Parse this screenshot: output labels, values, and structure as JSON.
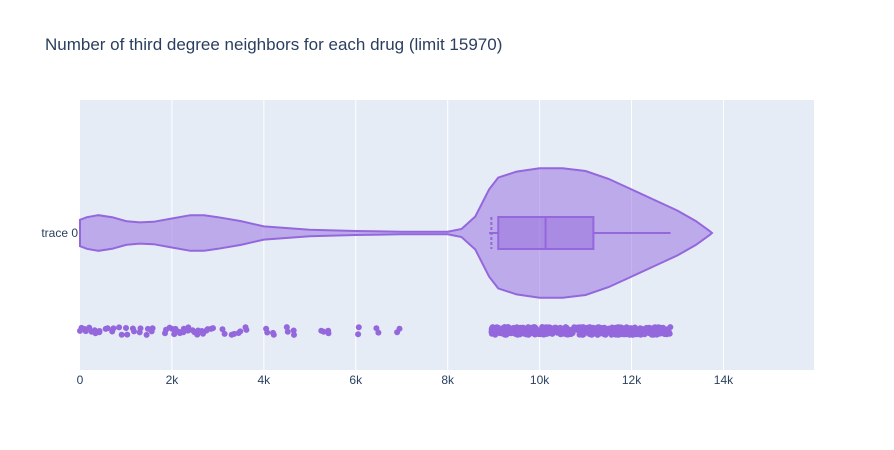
{
  "chart_data": {
    "type": "violin",
    "title": "Number of third degree neighbors for each drug (limit 15970)",
    "xlabel": "",
    "ylabel": "",
    "xlim": [
      0,
      15970
    ],
    "x_ticks": [
      0,
      2000,
      4000,
      6000,
      8000,
      10000,
      12000,
      14000
    ],
    "x_tick_labels": [
      "0",
      "2k",
      "4k",
      "6k",
      "8k",
      "10k",
      "12k",
      "14k"
    ],
    "grid": true,
    "series": [
      {
        "name": "trace 0",
        "color": "#9467dd",
        "box": {
          "q1": 9100,
          "median": 10130,
          "q3": 11170,
          "mean": 8950,
          "whisker_low": 8900,
          "whisker_high": 12850
        },
        "density_profile": [
          [
            0,
            0.2
          ],
          [
            150,
            0.24
          ],
          [
            400,
            0.27
          ],
          [
            700,
            0.24
          ],
          [
            1000,
            0.18
          ],
          [
            1300,
            0.16
          ],
          [
            1600,
            0.17
          ],
          [
            2000,
            0.22
          ],
          [
            2400,
            0.27
          ],
          [
            2700,
            0.27
          ],
          [
            3000,
            0.24
          ],
          [
            3500,
            0.18
          ],
          [
            4000,
            0.1
          ],
          [
            5000,
            0.05
          ],
          [
            6000,
            0.03
          ],
          [
            7000,
            0.02
          ],
          [
            8000,
            0.02
          ],
          [
            8300,
            0.06
          ],
          [
            8600,
            0.25
          ],
          [
            8900,
            0.66
          ],
          [
            9100,
            0.84
          ],
          [
            9500,
            0.93
          ],
          [
            10000,
            0.98
          ],
          [
            10500,
            0.98
          ],
          [
            11000,
            0.94
          ],
          [
            11500,
            0.82
          ],
          [
            12000,
            0.66
          ],
          [
            12500,
            0.5
          ],
          [
            13000,
            0.34
          ],
          [
            13400,
            0.18
          ],
          [
            13700,
            0.03
          ],
          [
            13750,
            0
          ]
        ],
        "points_outside_cluster": [
          0,
          100,
          200,
          320,
          420,
          560,
          700,
          850,
          1000,
          1150,
          1300,
          1450,
          1560,
          1850,
          1950,
          2050,
          2150,
          2250,
          2350,
          2450,
          2550,
          2650,
          2750,
          2850,
          3100,
          3300,
          3450,
          3600,
          4050,
          4200,
          4500,
          4650,
          5250,
          5400,
          6050,
          6450,
          6900
        ],
        "points_cluster_range": [
          8950,
          12850
        ]
      }
    ]
  }
}
